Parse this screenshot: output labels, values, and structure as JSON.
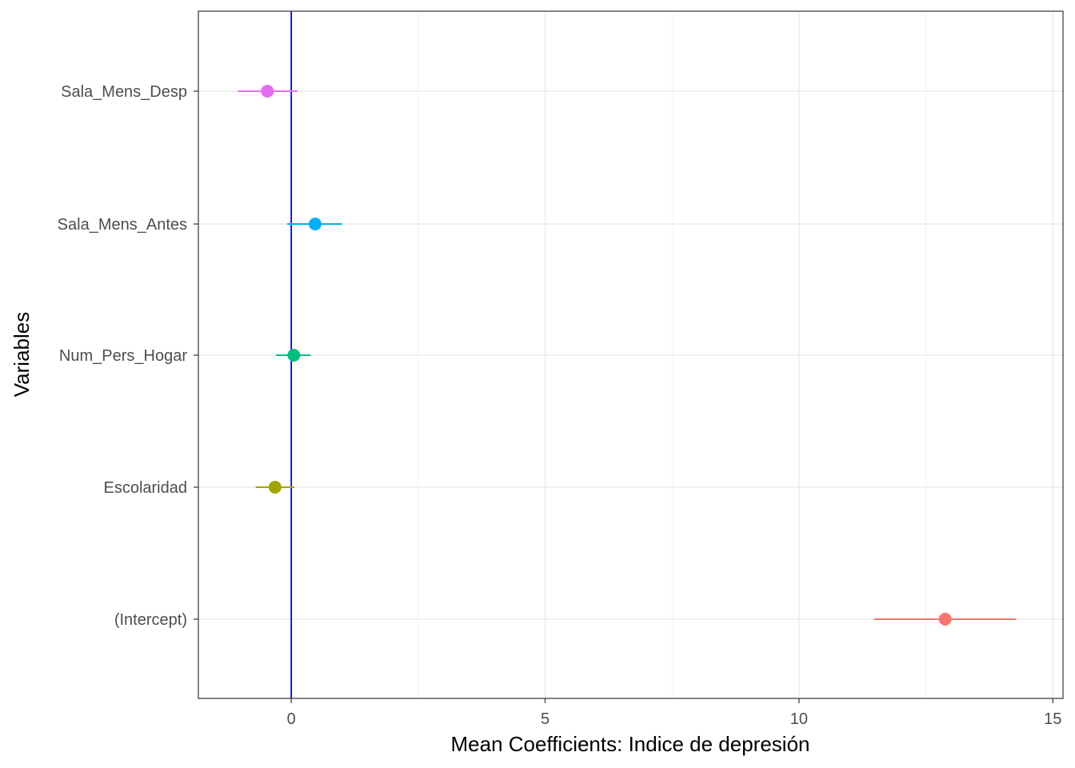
{
  "chart_data": {
    "type": "scatter",
    "xlabel": "Mean Coefficients: Indice de depresión",
    "ylabel": "Variables",
    "xlim": [
      -1.83,
      15.2
    ],
    "xticks": [
      0,
      5,
      10,
      15
    ],
    "reference_line": {
      "x": 0,
      "color": "#0000ff"
    },
    "grid": true,
    "categories": [
      "(Intercept)",
      "Escolaridad",
      "Num_Pers_Hogar",
      "Sala_Mens_Antes",
      "Sala_Mens_Desp"
    ],
    "points": [
      {
        "label": "(Intercept)",
        "mean": 12.88,
        "low": 11.48,
        "high": 14.28,
        "color": "#F8766D"
      },
      {
        "label": "Escolaridad",
        "mean": -0.32,
        "low": -0.7,
        "high": 0.06,
        "color": "#A3A500"
      },
      {
        "label": "Num_Pers_Hogar",
        "mean": 0.05,
        "low": -0.3,
        "high": 0.38,
        "color": "#00BF7D"
      },
      {
        "label": "Sala_Mens_Antes",
        "mean": 0.47,
        "low": -0.08,
        "high": 1.0,
        "color": "#00B0F6"
      },
      {
        "label": "Sala_Mens_Desp",
        "mean": -0.47,
        "low": -1.05,
        "high": 0.12,
        "color": "#E76BF3"
      }
    ]
  }
}
